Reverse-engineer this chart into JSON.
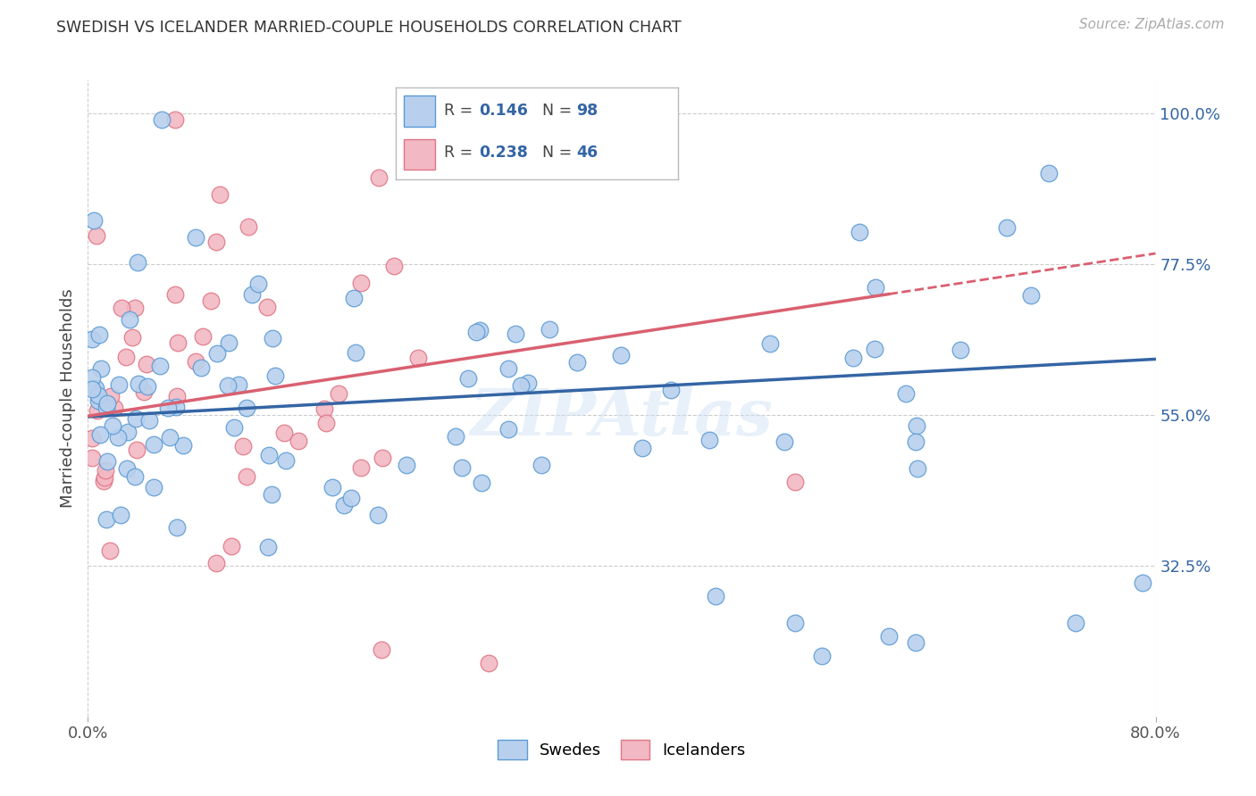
{
  "title": "SWEDISH VS ICELANDER MARRIED-COUPLE HOUSEHOLDS CORRELATION CHART",
  "source": "Source: ZipAtlas.com",
  "ylabel": "Married-couple Households",
  "xtick_left": "0.0%",
  "xtick_right": "80.0%",
  "yticks": [
    0.325,
    0.55,
    0.775,
    1.0
  ],
  "ytick_labels": [
    "32.5%",
    "55.0%",
    "77.5%",
    "100.0%"
  ],
  "xlim": [
    0.0,
    0.8
  ],
  "ylim": [
    0.1,
    1.05
  ],
  "background_color": "#ffffff",
  "swedish_fill": "#b8d0ed",
  "swedish_edge": "#5b9bd5",
  "icelander_fill": "#f2b8c4",
  "icelander_edge": "#e07585",
  "line_swedish_color": "#3465a4",
  "line_icelander_color": "#d96070",
  "grid_color": "#cccccc",
  "R_sw": 0.146,
  "N_sw": 98,
  "R_ic": 0.238,
  "N_ic": 46,
  "label_sw": "Swedes",
  "label_ic": "Icelanders",
  "watermark": "ZIPAtlas",
  "title_fontsize": 12.5,
  "axis_fontsize": 13,
  "marker_size": 180
}
